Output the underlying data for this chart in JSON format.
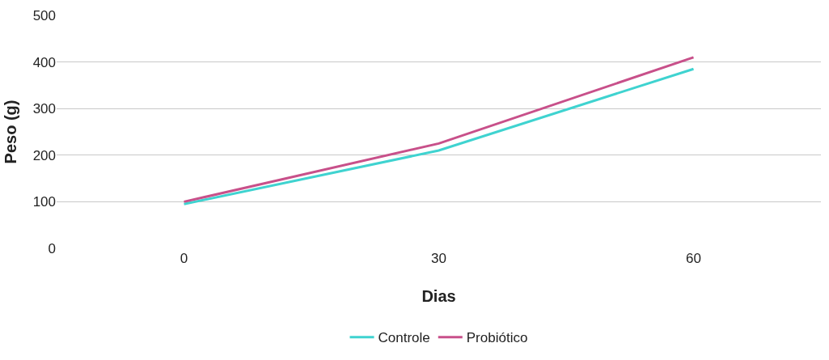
{
  "chart_data": {
    "type": "line",
    "xlabel": "Dias",
    "ylabel": "Peso (g)",
    "categories": [
      "0",
      "30",
      "60"
    ],
    "series": [
      {
        "name": "Controle",
        "color": "#3fd3d0",
        "values": [
          95,
          210,
          385
        ]
      },
      {
        "name": "Probiótico",
        "color": "#c8508a",
        "values": [
          100,
          225,
          410
        ]
      }
    ],
    "ylim": [
      0,
      500
    ],
    "yticks": [
      0,
      100,
      200,
      300,
      400,
      500
    ],
    "grid": "y",
    "legend": "bottom",
    "marker": "none",
    "line_style": "solid"
  }
}
